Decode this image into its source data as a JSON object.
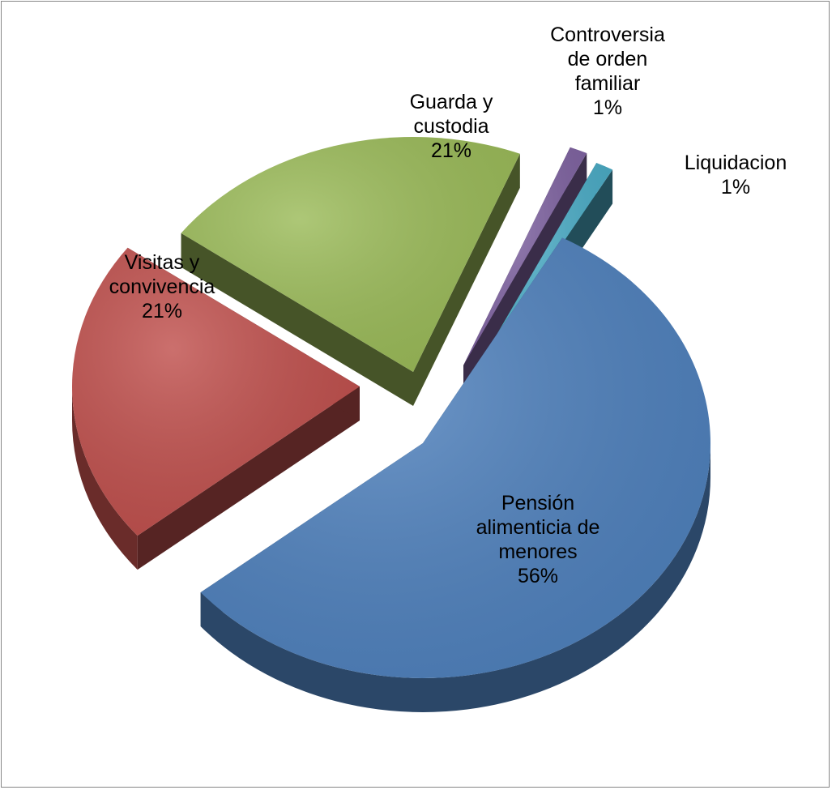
{
  "chart_data": {
    "type": "pie",
    "title": "",
    "slices": [
      {
        "lines": [
          "Pensión",
          "alimenticia de",
          "menores"
        ],
        "value": 56,
        "pct_label": "56%",
        "color": "#4F81BD"
      },
      {
        "lines": [
          "Visitas y",
          "convivencia"
        ],
        "value": 21,
        "pct_label": "21%",
        "color": "#C0504D"
      },
      {
        "lines": [
          "Guarda y",
          "custodia"
        ],
        "value": 21,
        "pct_label": "21%",
        "color": "#9BBB59"
      },
      {
        "lines": [
          "Controversia",
          "de orden",
          "familiar"
        ],
        "value": 1,
        "pct_label": "1%",
        "color": "#8064A2"
      },
      {
        "lines": [
          "Liquidacion"
        ],
        "value": 1,
        "pct_label": "1%",
        "color": "#4BACC6"
      }
    ],
    "legend": "none",
    "style": "3d-exploded"
  }
}
